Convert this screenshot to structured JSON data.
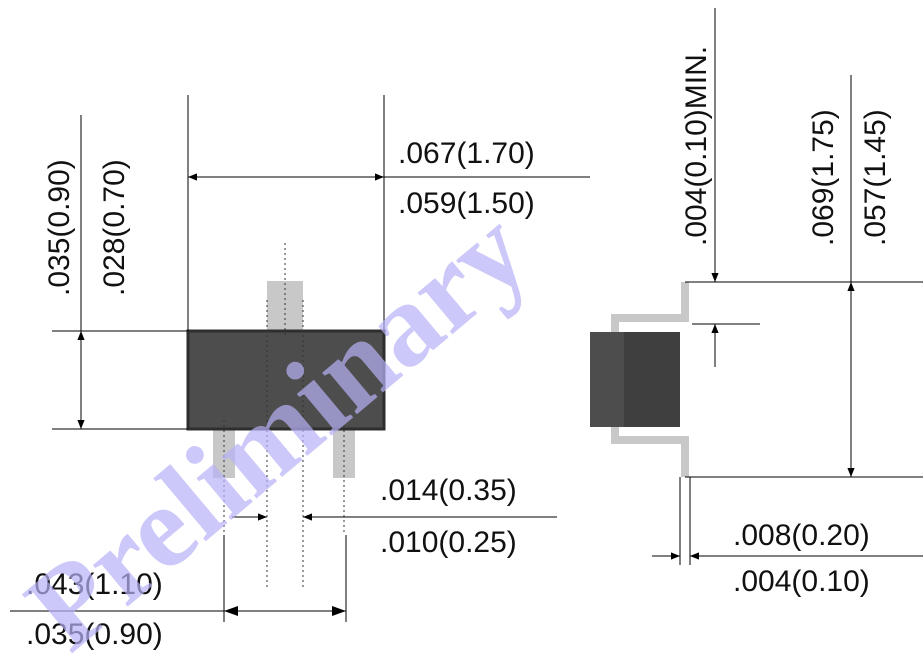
{
  "watermark": "Preliminary",
  "dimensions": {
    "width_max": ".067(1.70)",
    "width_min": ".059(1.50)",
    "height_max": ".035(0.90)",
    "height_min": ".028(0.70)",
    "lead_width_max": ".014(0.35)",
    "lead_width_min": ".010(0.25)",
    "pitch_max": ".043(1.10)",
    "pitch_min": ".035(0.90)",
    "standoff_min": ".004(0.10)MIN.",
    "total_height_max": ".069(1.75)",
    "total_height_min": ".057(1.45)",
    "lead_thickness_max": ".008(0.20)",
    "lead_thickness_min": ".004(0.10)"
  },
  "colors": {
    "body_fill": "#4d4d4d",
    "body_edge": "#2e2e2e",
    "lead_fill": "#c8c8c8",
    "watermark": "#b7b2f7"
  }
}
